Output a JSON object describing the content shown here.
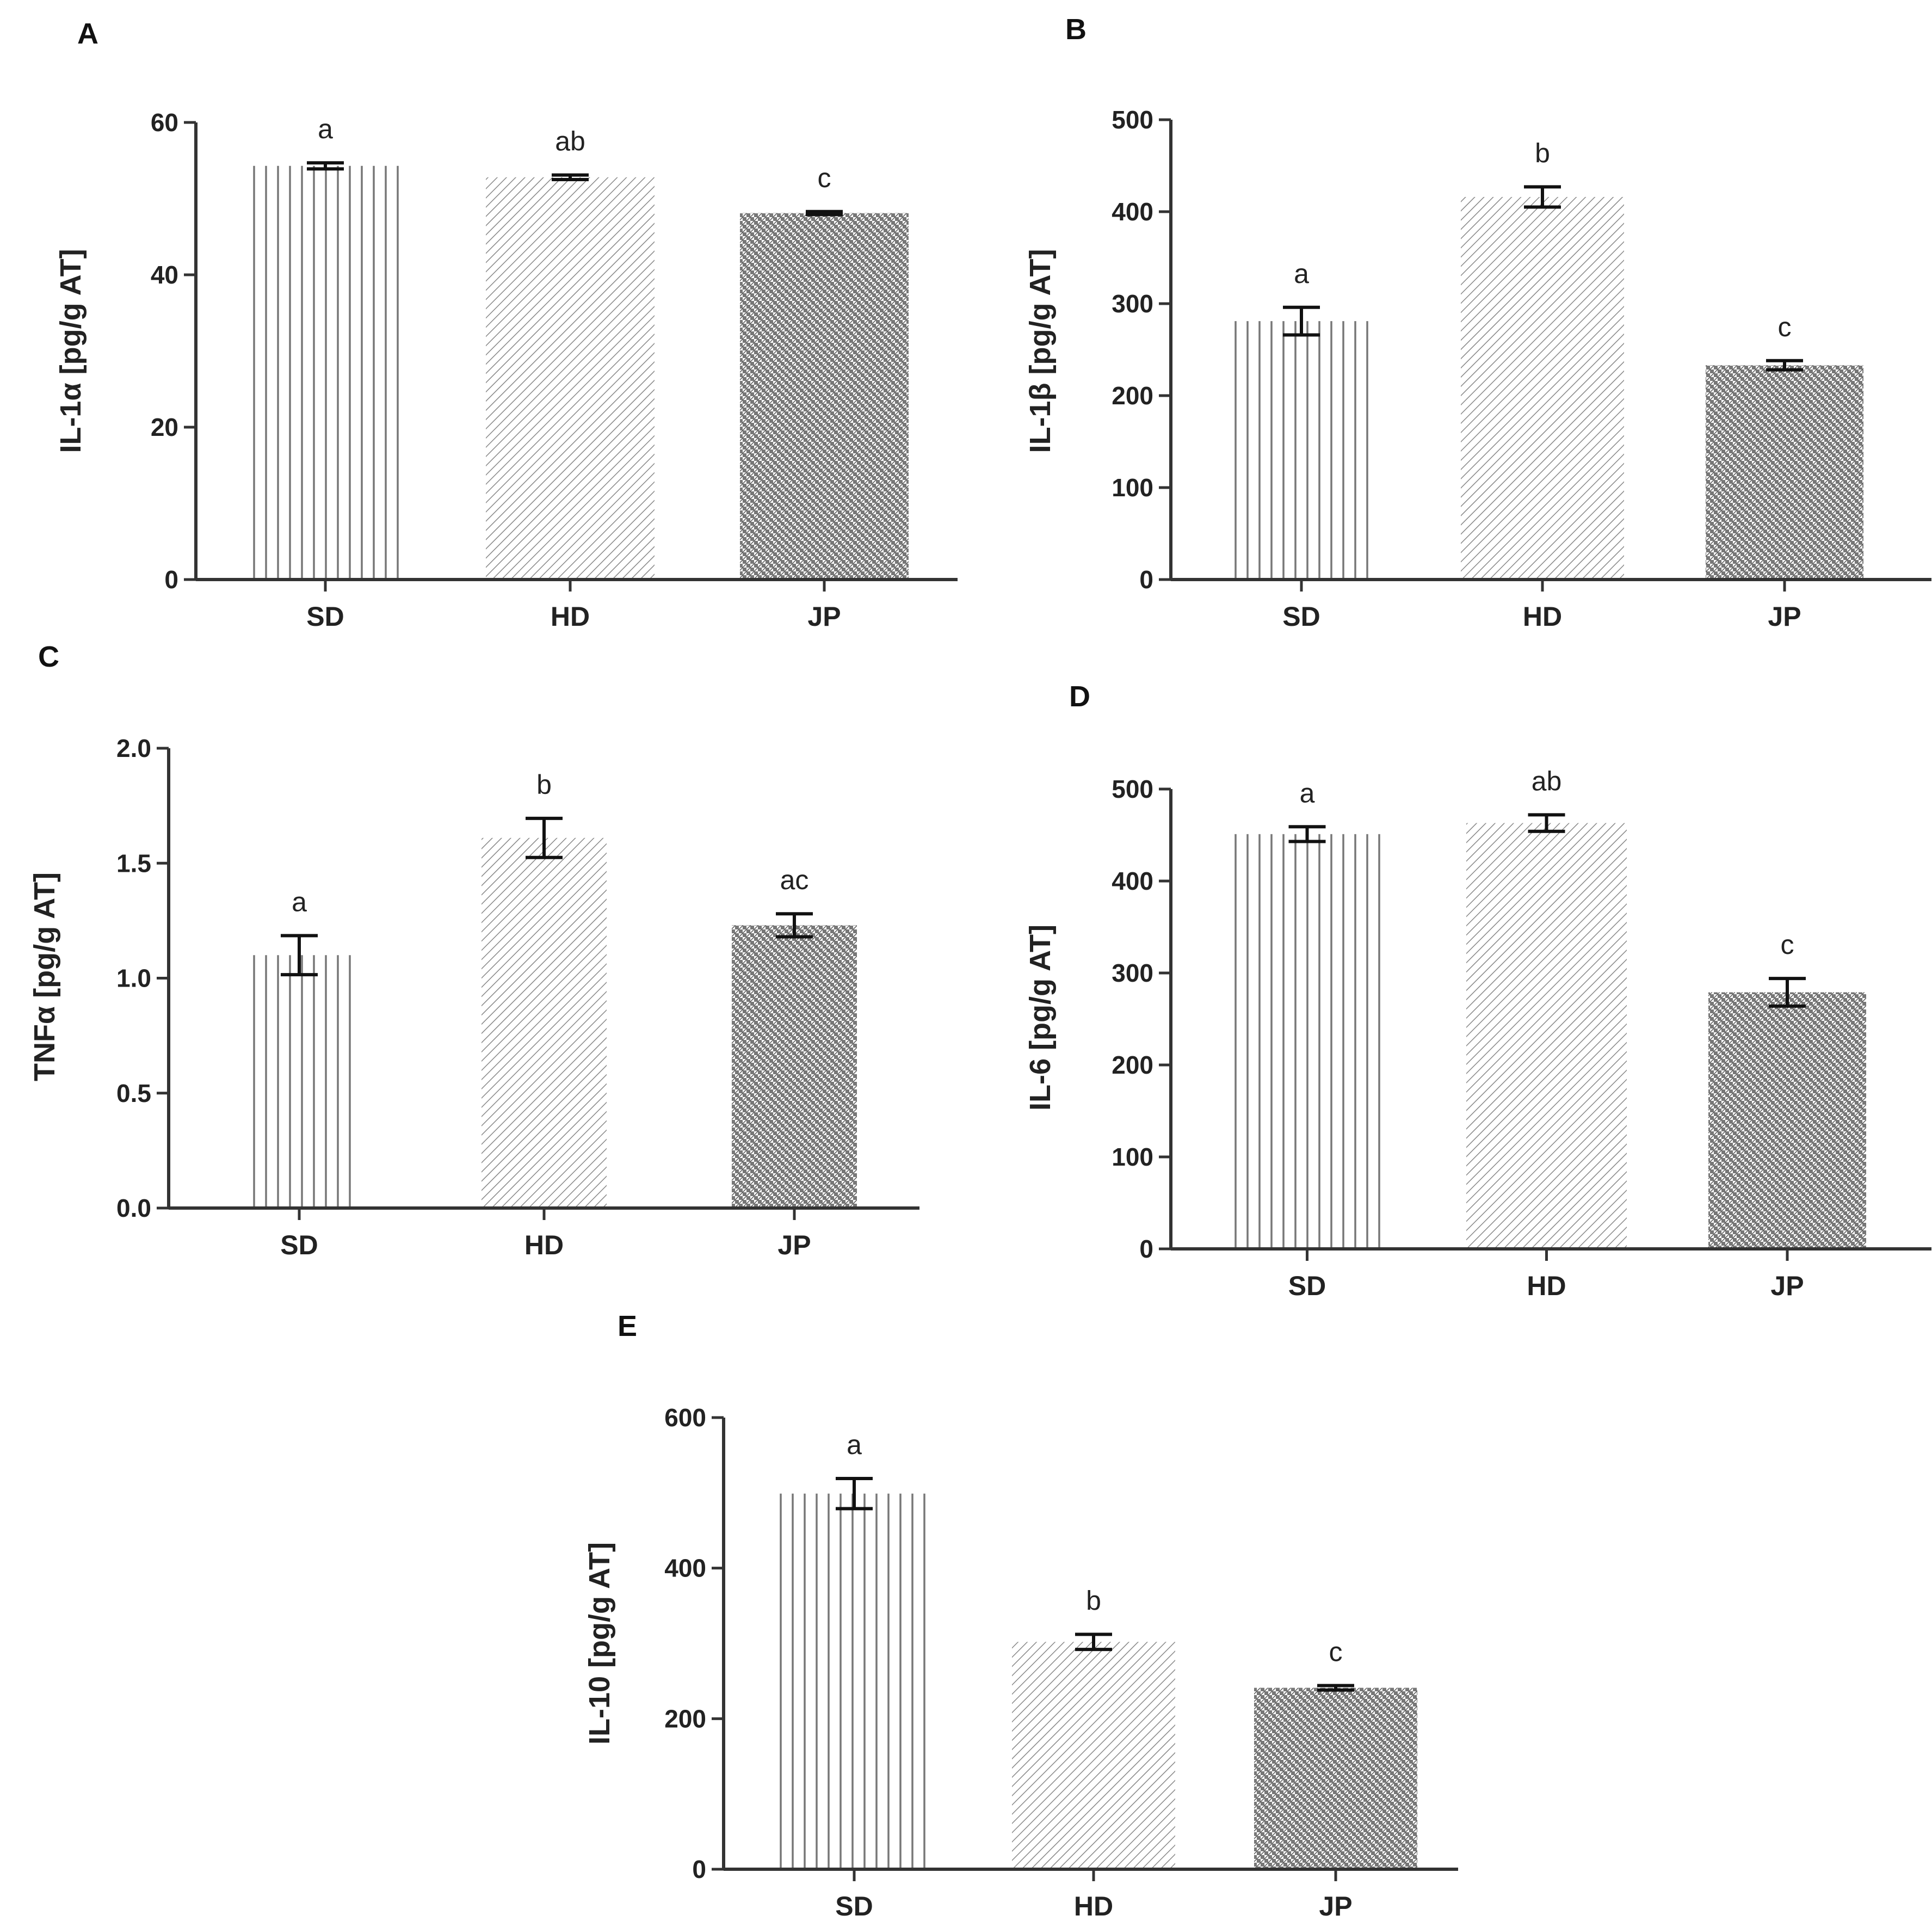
{
  "chart_data": [
    {
      "id": "A",
      "type": "bar",
      "title": "A",
      "ylabel": "IL-1α [pg/g AT]",
      "ylim": [
        0,
        60
      ],
      "yticks": [
        0,
        20,
        40,
        60
      ],
      "tick_labels": [
        "0",
        "20",
        "40",
        "60"
      ],
      "categories": [
        "SD",
        "HD",
        "JP"
      ],
      "values": [
        54.3,
        52.8,
        48.1
      ],
      "errors": [
        0.4,
        0.3,
        0.2
      ],
      "significance": [
        "a",
        "ab",
        "c"
      ]
    },
    {
      "id": "B",
      "type": "bar",
      "title": "B",
      "ylabel": "IL-1β [pg/g AT]",
      "ylim": [
        0,
        500
      ],
      "yticks": [
        0,
        100,
        200,
        300,
        400,
        500
      ],
      "tick_labels": [
        "0",
        "100",
        "200",
        "300",
        "400",
        "500"
      ],
      "categories": [
        "SD",
        "HD",
        "JP"
      ],
      "values": [
        281,
        416,
        233
      ],
      "errors": [
        15,
        11,
        5
      ],
      "significance": [
        "a",
        "b",
        "c"
      ]
    },
    {
      "id": "C",
      "type": "bar",
      "title": "C",
      "ylabel": "TNFα  [pg/g AT]",
      "ylim": [
        0,
        2
      ],
      "yticks": [
        0,
        0.5,
        1,
        1.5,
        2
      ],
      "tick_labels": [
        "0.0",
        "0.5",
        "1.0",
        "1.5",
        "2.0"
      ],
      "categories": [
        "SD",
        "HD",
        "JP"
      ],
      "values": [
        1.1,
        1.61,
        1.23
      ],
      "errors": [
        0.085,
        0.085,
        0.05
      ],
      "significance": [
        "a",
        "b",
        "ac"
      ]
    },
    {
      "id": "D",
      "type": "bar",
      "title": "D",
      "ylabel": "IL-6 [pg/g AT]",
      "ylim": [
        0,
        500
      ],
      "yticks": [
        0,
        100,
        200,
        300,
        400,
        500
      ],
      "tick_labels": [
        "0",
        "100",
        "200",
        "300",
        "400",
        "500"
      ],
      "categories": [
        "SD",
        "HD",
        "JP"
      ],
      "values": [
        451,
        463,
        279
      ],
      "errors": [
        8,
        9,
        15
      ],
      "significance": [
        "a",
        "ab",
        "c"
      ]
    },
    {
      "id": "E",
      "type": "bar",
      "title": "E",
      "ylabel": "IL-10 [pg/g AT]",
      "ylim": [
        0,
        600
      ],
      "yticks": [
        0,
        200,
        400,
        600
      ],
      "tick_labels": [
        "0",
        "200",
        "400",
        "600"
      ],
      "categories": [
        "SD",
        "HD",
        "JP"
      ],
      "values": [
        499,
        302,
        241
      ],
      "errors": [
        20,
        10,
        3
      ],
      "significance": [
        "a",
        "b",
        "c"
      ]
    }
  ]
}
